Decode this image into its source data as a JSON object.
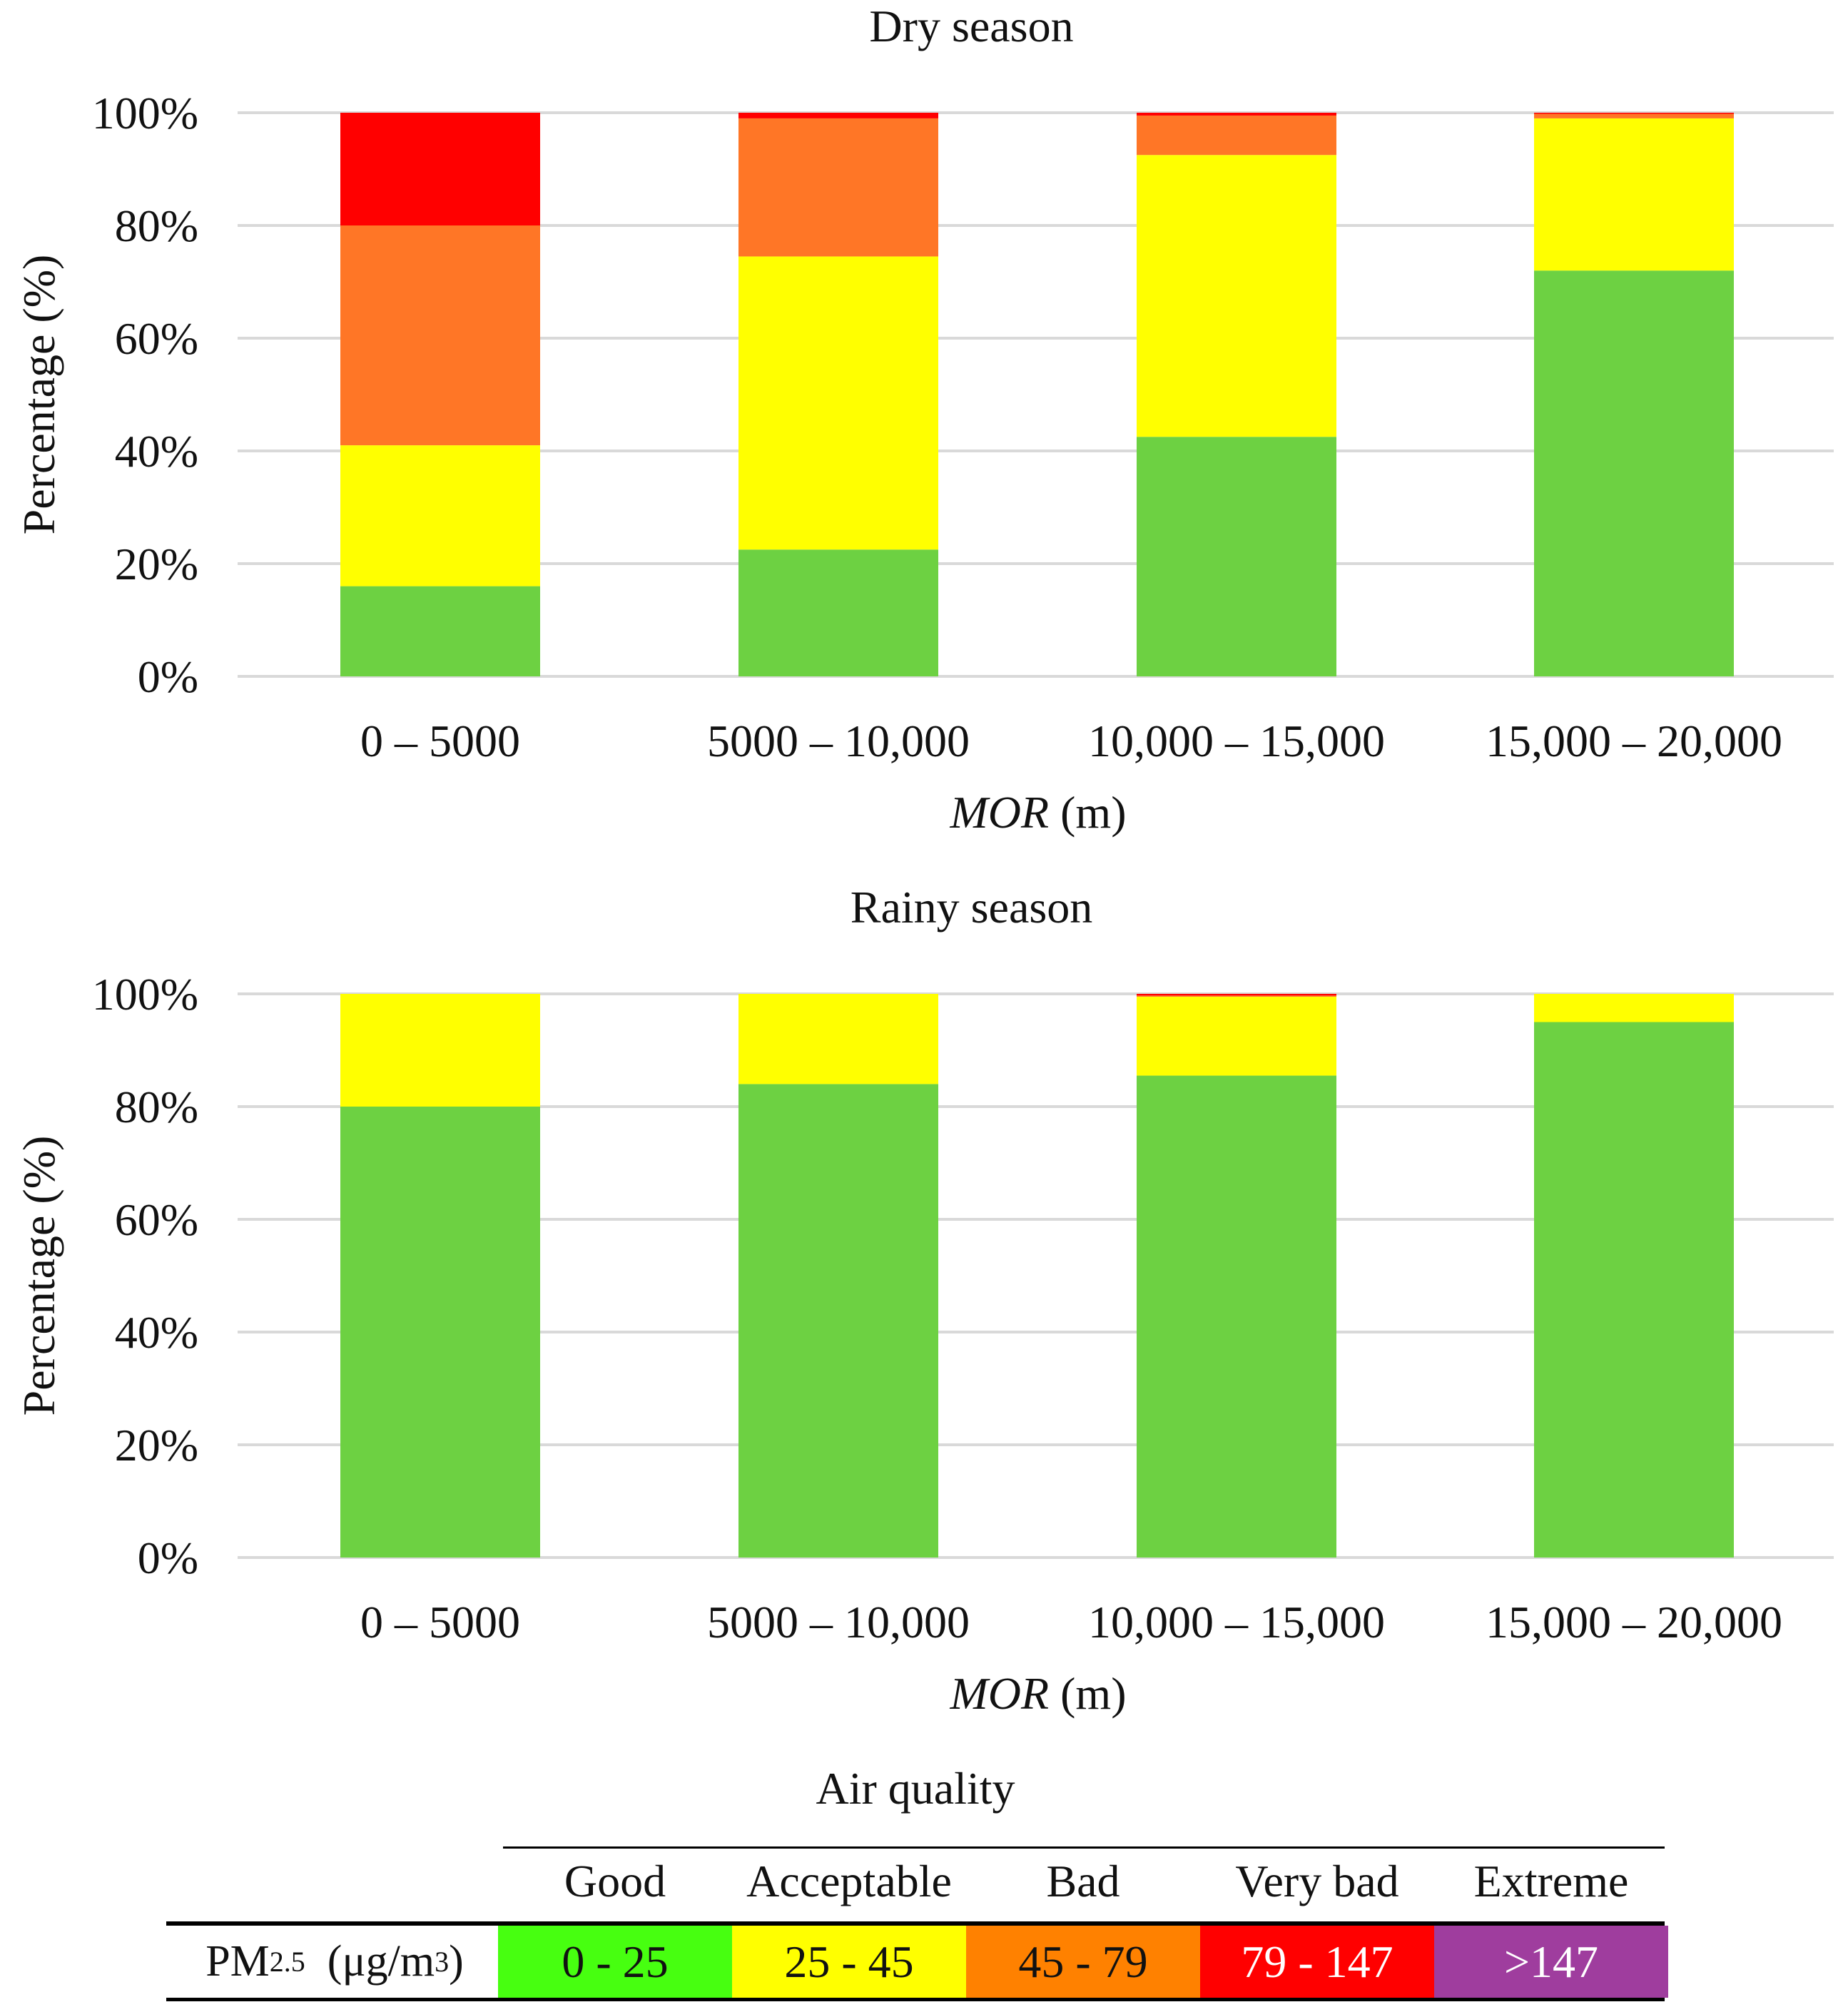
{
  "chart_data": [
    {
      "type": "bar",
      "stacked": true,
      "title": "Dry season",
      "xlabel_italic": "MOR",
      "xlabel_unit": "(m)",
      "ylabel": "Percentage (%)",
      "ylim": [
        0,
        100
      ],
      "yticks": [
        "0%",
        "20%",
        "40%",
        "60%",
        "80%",
        "100%"
      ],
      "categories": [
        "0 – 5000",
        "5000 – 10,000",
        "10,000 – 15,000",
        "15,000 – 20,000"
      ],
      "series": [
        {
          "name": "Good",
          "color": "#6dd142",
          "values": [
            16,
            22.5,
            42.5,
            72
          ]
        },
        {
          "name": "Acceptable",
          "color": "#ffff00",
          "values": [
            25,
            52,
            50,
            27
          ]
        },
        {
          "name": "Bad",
          "color": "#ff7626",
          "values": [
            39,
            24.5,
            7,
            0.8
          ]
        },
        {
          "name": "Very bad",
          "color": "#ff0000",
          "values": [
            20,
            1,
            0.5,
            0.2
          ]
        }
      ]
    },
    {
      "type": "bar",
      "stacked": true,
      "title": "Rainy season",
      "xlabel_italic": "MOR",
      "xlabel_unit": "(m)",
      "ylabel": "Percentage (%)",
      "ylim": [
        0,
        100
      ],
      "yticks": [
        "0%",
        "20%",
        "40%",
        "60%",
        "80%",
        "100%"
      ],
      "categories": [
        "0 – 5000",
        "5000 – 10,000",
        "10,000 – 15,000",
        "15,000 – 20,000"
      ],
      "series": [
        {
          "name": "Good",
          "color": "#6dd142",
          "values": [
            80,
            84,
            85.5,
            95
          ]
        },
        {
          "name": "Acceptable",
          "color": "#ffff00",
          "values": [
            20,
            16,
            14,
            5
          ]
        },
        {
          "name": "Bad",
          "color": "#ff7626",
          "values": [
            0,
            0,
            0.2,
            0
          ]
        },
        {
          "name": "Very bad",
          "color": "#ff0000",
          "values": [
            0,
            0,
            0.3,
            0
          ]
        }
      ]
    }
  ],
  "legend": {
    "title": "Air quality",
    "row_label": {
      "main": "PM",
      "sub": "2.5",
      "unit": "(μg/m",
      "sup": "3",
      "close": ")"
    },
    "categories": [
      {
        "label": "Good",
        "range": "0 - 25",
        "color": "#47ff10",
        "text_color": "#111111"
      },
      {
        "label": "Acceptable",
        "range": "25 - 45",
        "color": "#ffff00",
        "text_color": "#111111"
      },
      {
        "label": "Bad",
        "range": "45 - 79",
        "color": "#ff8100",
        "text_color": "#111111"
      },
      {
        "label": "Very bad",
        "range": "79 - 147",
        "color": "#ff0000",
        "text_color": "#ffffff"
      },
      {
        "label": "Extreme",
        "range": ">147",
        "color": "#9f3d9e",
        "text_color": "#ffffff"
      }
    ]
  }
}
